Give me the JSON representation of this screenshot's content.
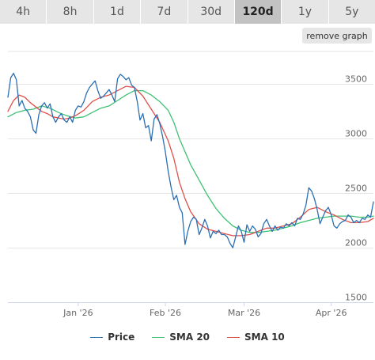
{
  "tabs": [
    {
      "label": "4h",
      "active": false
    },
    {
      "label": "8h",
      "active": false
    },
    {
      "label": "1d",
      "active": false
    },
    {
      "label": "7d",
      "active": false
    },
    {
      "label": "30d",
      "active": false
    },
    {
      "label": "120d",
      "active": true
    },
    {
      "label": "1y",
      "active": false
    },
    {
      "label": "5y",
      "active": false
    }
  ],
  "remove_graph_label": "remove graph",
  "chart_data": {
    "type": "line",
    "title": "",
    "xlabel": "",
    "ylabel": "",
    "ylim": [
      1500,
      3800
    ],
    "yticks": [
      1500,
      2000,
      2500,
      3000,
      3500
    ],
    "xlim": [
      "2025-12-07",
      "2026-04-16"
    ],
    "xticks": [
      {
        "date": "2026-01-01",
        "label": "Jan '26"
      },
      {
        "date": "2026-02-01",
        "label": "Feb '26"
      },
      {
        "date": "2026-03-01",
        "label": "Mar '26"
      },
      {
        "date": "2026-04-01",
        "label": "Apr '26"
      }
    ],
    "grid": true,
    "legend_position": "bottom",
    "series": [
      {
        "name": "Price",
        "color": "#2b6fb3",
        "points": [
          [
            "2025-12-07",
            3380
          ],
          [
            "2025-12-08",
            3560
          ],
          [
            "2025-12-09",
            3600
          ],
          [
            "2025-12-10",
            3540
          ],
          [
            "2025-12-11",
            3300
          ],
          [
            "2025-12-12",
            3350
          ],
          [
            "2025-12-13",
            3280
          ],
          [
            "2025-12-14",
            3250
          ],
          [
            "2025-12-15",
            3200
          ],
          [
            "2025-12-16",
            3080
          ],
          [
            "2025-12-17",
            3050
          ],
          [
            "2025-12-18",
            3220
          ],
          [
            "2025-12-19",
            3300
          ],
          [
            "2025-12-20",
            3330
          ],
          [
            "2025-12-21",
            3280
          ],
          [
            "2025-12-22",
            3320
          ],
          [
            "2025-12-23",
            3200
          ],
          [
            "2025-12-24",
            3150
          ],
          [
            "2025-12-25",
            3200
          ],
          [
            "2025-12-26",
            3230
          ],
          [
            "2025-12-27",
            3170
          ],
          [
            "2025-12-28",
            3150
          ],
          [
            "2025-12-29",
            3200
          ],
          [
            "2025-12-30",
            3150
          ],
          [
            "2025-12-31",
            3260
          ],
          [
            "2026-01-01",
            3300
          ],
          [
            "2026-01-02",
            3290
          ],
          [
            "2026-01-03",
            3340
          ],
          [
            "2026-01-04",
            3420
          ],
          [
            "2026-01-05",
            3470
          ],
          [
            "2026-01-06",
            3500
          ],
          [
            "2026-01-07",
            3530
          ],
          [
            "2026-01-08",
            3440
          ],
          [
            "2026-01-09",
            3370
          ],
          [
            "2026-01-10",
            3390
          ],
          [
            "2026-01-11",
            3420
          ],
          [
            "2026-01-12",
            3450
          ],
          [
            "2026-01-13",
            3400
          ],
          [
            "2026-01-14",
            3340
          ],
          [
            "2026-01-15",
            3550
          ],
          [
            "2026-01-16",
            3590
          ],
          [
            "2026-01-17",
            3570
          ],
          [
            "2026-01-18",
            3540
          ],
          [
            "2026-01-19",
            3560
          ],
          [
            "2026-01-20",
            3490
          ],
          [
            "2026-01-21",
            3470
          ],
          [
            "2026-01-22",
            3340
          ],
          [
            "2026-01-23",
            3170
          ],
          [
            "2026-01-24",
            3230
          ],
          [
            "2026-01-25",
            3100
          ],
          [
            "2026-01-26",
            3120
          ],
          [
            "2026-01-27",
            2980
          ],
          [
            "2026-01-28",
            3180
          ],
          [
            "2026-01-29",
            3220
          ],
          [
            "2026-01-30",
            3140
          ],
          [
            "2026-01-31",
            3020
          ],
          [
            "2026-02-01",
            2880
          ],
          [
            "2026-02-02",
            2700
          ],
          [
            "2026-02-03",
            2560
          ],
          [
            "2026-02-04",
            2440
          ],
          [
            "2026-02-05",
            2480
          ],
          [
            "2026-02-06",
            2370
          ],
          [
            "2026-02-07",
            2320
          ],
          [
            "2026-02-08",
            2030
          ],
          [
            "2026-02-09",
            2150
          ],
          [
            "2026-02-10",
            2240
          ],
          [
            "2026-02-11",
            2280
          ],
          [
            "2026-02-12",
            2260
          ],
          [
            "2026-02-13",
            2120
          ],
          [
            "2026-02-14",
            2180
          ],
          [
            "2026-02-15",
            2260
          ],
          [
            "2026-02-16",
            2200
          ],
          [
            "2026-02-17",
            2090
          ],
          [
            "2026-02-18",
            2150
          ],
          [
            "2026-02-19",
            2130
          ],
          [
            "2026-02-20",
            2160
          ],
          [
            "2026-02-21",
            2120
          ],
          [
            "2026-02-22",
            2120
          ],
          [
            "2026-02-23",
            2100
          ],
          [
            "2026-02-24",
            2040
          ],
          [
            "2026-02-25",
            2000
          ],
          [
            "2026-02-26",
            2100
          ],
          [
            "2026-02-27",
            2200
          ],
          [
            "2026-02-28",
            2150
          ],
          [
            "2026-03-01",
            2050
          ],
          [
            "2026-03-02",
            2210
          ],
          [
            "2026-03-03",
            2150
          ],
          [
            "2026-03-04",
            2200
          ],
          [
            "2026-03-05",
            2170
          ],
          [
            "2026-03-06",
            2100
          ],
          [
            "2026-03-07",
            2130
          ],
          [
            "2026-03-08",
            2220
          ],
          [
            "2026-03-09",
            2260
          ],
          [
            "2026-03-10",
            2200
          ],
          [
            "2026-03-11",
            2150
          ],
          [
            "2026-03-12",
            2200
          ],
          [
            "2026-03-13",
            2160
          ],
          [
            "2026-03-14",
            2190
          ],
          [
            "2026-03-15",
            2180
          ],
          [
            "2026-03-16",
            2220
          ],
          [
            "2026-03-17",
            2200
          ],
          [
            "2026-03-18",
            2230
          ],
          [
            "2026-03-19",
            2200
          ],
          [
            "2026-03-20",
            2270
          ],
          [
            "2026-03-21",
            2260
          ],
          [
            "2026-03-22",
            2310
          ],
          [
            "2026-03-23",
            2390
          ],
          [
            "2026-03-24",
            2550
          ],
          [
            "2026-03-25",
            2520
          ],
          [
            "2026-03-26",
            2450
          ],
          [
            "2026-03-27",
            2350
          ],
          [
            "2026-03-28",
            2220
          ],
          [
            "2026-03-29",
            2280
          ],
          [
            "2026-03-30",
            2340
          ],
          [
            "2026-03-31",
            2370
          ],
          [
            "2026-04-01",
            2300
          ],
          [
            "2026-04-02",
            2200
          ],
          [
            "2026-04-03",
            2180
          ],
          [
            "2026-04-04",
            2220
          ],
          [
            "2026-04-05",
            2240
          ],
          [
            "2026-04-06",
            2250
          ],
          [
            "2026-04-07",
            2300
          ],
          [
            "2026-04-08",
            2280
          ],
          [
            "2026-04-09",
            2230
          ],
          [
            "2026-04-10",
            2250
          ],
          [
            "2026-04-11",
            2230
          ],
          [
            "2026-04-12",
            2270
          ],
          [
            "2026-04-13",
            2260
          ],
          [
            "2026-04-14",
            2300
          ],
          [
            "2026-04-15",
            2280
          ],
          [
            "2026-04-16",
            2420
          ]
        ]
      },
      {
        "name": "SMA 20",
        "color": "#3cc173",
        "points": [
          [
            "2025-12-07",
            3200
          ],
          [
            "2025-12-10",
            3240
          ],
          [
            "2025-12-13",
            3260
          ],
          [
            "2025-12-16",
            3270
          ],
          [
            "2025-12-19",
            3300
          ],
          [
            "2025-12-22",
            3280
          ],
          [
            "2025-12-25",
            3240
          ],
          [
            "2025-12-28",
            3210
          ],
          [
            "2025-12-31",
            3190
          ],
          [
            "2026-01-03",
            3200
          ],
          [
            "2026-01-06",
            3240
          ],
          [
            "2026-01-09",
            3280
          ],
          [
            "2026-01-12",
            3300
          ],
          [
            "2026-01-15",
            3350
          ],
          [
            "2026-01-18",
            3400
          ],
          [
            "2026-01-21",
            3440
          ],
          [
            "2026-01-24",
            3440
          ],
          [
            "2026-01-27",
            3400
          ],
          [
            "2026-01-30",
            3340
          ],
          [
            "2026-02-02",
            3260
          ],
          [
            "2026-02-04",
            3150
          ],
          [
            "2026-02-06",
            3000
          ],
          [
            "2026-02-08",
            2880
          ],
          [
            "2026-02-10",
            2760
          ],
          [
            "2026-02-13",
            2620
          ],
          [
            "2026-02-16",
            2480
          ],
          [
            "2026-02-19",
            2360
          ],
          [
            "2026-02-22",
            2270
          ],
          [
            "2026-02-25",
            2200
          ],
          [
            "2026-02-28",
            2160
          ],
          [
            "2026-03-03",
            2140
          ],
          [
            "2026-03-06",
            2140
          ],
          [
            "2026-03-09",
            2150
          ],
          [
            "2026-03-12",
            2160
          ],
          [
            "2026-03-15",
            2180
          ],
          [
            "2026-03-18",
            2200
          ],
          [
            "2026-03-21",
            2230
          ],
          [
            "2026-03-24",
            2250
          ],
          [
            "2026-03-27",
            2270
          ],
          [
            "2026-03-30",
            2280
          ],
          [
            "2026-04-02",
            2290
          ],
          [
            "2026-04-05",
            2290
          ],
          [
            "2026-04-08",
            2290
          ],
          [
            "2026-04-11",
            2280
          ],
          [
            "2026-04-14",
            2280
          ],
          [
            "2026-04-16",
            2290
          ]
        ]
      },
      {
        "name": "SMA 10",
        "color": "#e0504a",
        "points": [
          [
            "2025-12-07",
            3250
          ],
          [
            "2025-12-09",
            3350
          ],
          [
            "2025-12-11",
            3400
          ],
          [
            "2025-12-13",
            3380
          ],
          [
            "2025-12-15",
            3330
          ],
          [
            "2025-12-17",
            3290
          ],
          [
            "2025-12-19",
            3250
          ],
          [
            "2025-12-21",
            3230
          ],
          [
            "2025-12-23",
            3200
          ],
          [
            "2025-12-25",
            3190
          ],
          [
            "2025-12-27",
            3180
          ],
          [
            "2025-12-29",
            3190
          ],
          [
            "2025-12-31",
            3210
          ],
          [
            "2026-01-03",
            3260
          ],
          [
            "2026-01-06",
            3340
          ],
          [
            "2026-01-09",
            3380
          ],
          [
            "2026-01-12",
            3400
          ],
          [
            "2026-01-15",
            3440
          ],
          [
            "2026-01-18",
            3480
          ],
          [
            "2026-01-21",
            3470
          ],
          [
            "2026-01-24",
            3390
          ],
          [
            "2026-01-27",
            3270
          ],
          [
            "2026-01-30",
            3150
          ],
          [
            "2026-02-02",
            2980
          ],
          [
            "2026-02-04",
            2820
          ],
          [
            "2026-02-06",
            2600
          ],
          [
            "2026-02-08",
            2450
          ],
          [
            "2026-02-10",
            2330
          ],
          [
            "2026-02-13",
            2220
          ],
          [
            "2026-02-16",
            2170
          ],
          [
            "2026-02-19",
            2150
          ],
          [
            "2026-02-22",
            2130
          ],
          [
            "2026-02-25",
            2110
          ],
          [
            "2026-02-28",
            2110
          ],
          [
            "2026-03-03",
            2120
          ],
          [
            "2026-03-06",
            2150
          ],
          [
            "2026-03-09",
            2180
          ],
          [
            "2026-03-12",
            2180
          ],
          [
            "2026-03-15",
            2200
          ],
          [
            "2026-03-18",
            2220
          ],
          [
            "2026-03-21",
            2280
          ],
          [
            "2026-03-24",
            2350
          ],
          [
            "2026-03-27",
            2370
          ],
          [
            "2026-03-30",
            2330
          ],
          [
            "2026-04-02",
            2300
          ],
          [
            "2026-04-05",
            2260
          ],
          [
            "2026-04-08",
            2230
          ],
          [
            "2026-04-11",
            2230
          ],
          [
            "2026-04-14",
            2240
          ],
          [
            "2026-04-16",
            2270
          ]
        ]
      }
    ]
  }
}
